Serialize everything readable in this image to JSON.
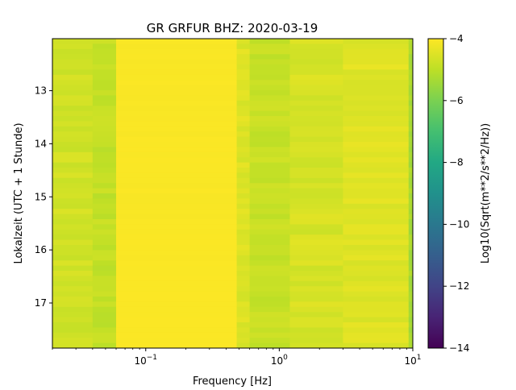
{
  "chart_data": {
    "type": "heatmap",
    "title": "GR GRFUR  BHZ: 2020-03-19",
    "xlabel": "Frequency [Hz]",
    "ylabel": "Lokalzeit (UTC + 1 Stunde)",
    "xscale": "log",
    "xlim": [
      0.02,
      10
    ],
    "ylim": [
      17.85,
      12.02
    ],
    "x_ticks": [
      {
        "value": 0.1,
        "base": "10",
        "exp": "−1"
      },
      {
        "value": 1,
        "base": "10",
        "exp": "0"
      },
      {
        "value": 10,
        "base": "10",
        "exp": "1"
      }
    ],
    "y_ticks": [
      {
        "value": 13,
        "label": "13"
      },
      {
        "value": 14,
        "label": "14"
      },
      {
        "value": 15,
        "label": "15"
      },
      {
        "value": 16,
        "label": "16"
      },
      {
        "value": 17,
        "label": "17"
      }
    ],
    "colorbar": {
      "label": "Log10(Sqrt(m**2/s**2/Hz))",
      "range": [
        -14,
        -4
      ],
      "colormap": "viridis",
      "ticks": [
        {
          "value": -4,
          "label": "−4"
        },
        {
          "value": -6,
          "label": "−6"
        },
        {
          "value": -8,
          "label": "−8"
        },
        {
          "value": -10,
          "label": "−10"
        },
        {
          "value": -12,
          "label": "−12"
        },
        {
          "value": -14,
          "label": "−14"
        }
      ]
    },
    "spectrum_profile": [
      {
        "f_min": 0.02,
        "f_max": 0.04,
        "value": -4.7
      },
      {
        "f_min": 0.04,
        "f_max": 0.06,
        "value": -4.9
      },
      {
        "f_min": 0.06,
        "f_max": 0.48,
        "value": -4.05
      },
      {
        "f_min": 0.48,
        "f_max": 0.6,
        "value": -4.5
      },
      {
        "f_min": 0.6,
        "f_max": 1.2,
        "value": -4.85
      },
      {
        "f_min": 1.2,
        "f_max": 3.0,
        "value": -4.6
      },
      {
        "f_min": 3.0,
        "f_max": 9.3,
        "value": -4.45
      },
      {
        "f_min": 9.3,
        "f_max": 10,
        "value": -5.3
      }
    ]
  }
}
